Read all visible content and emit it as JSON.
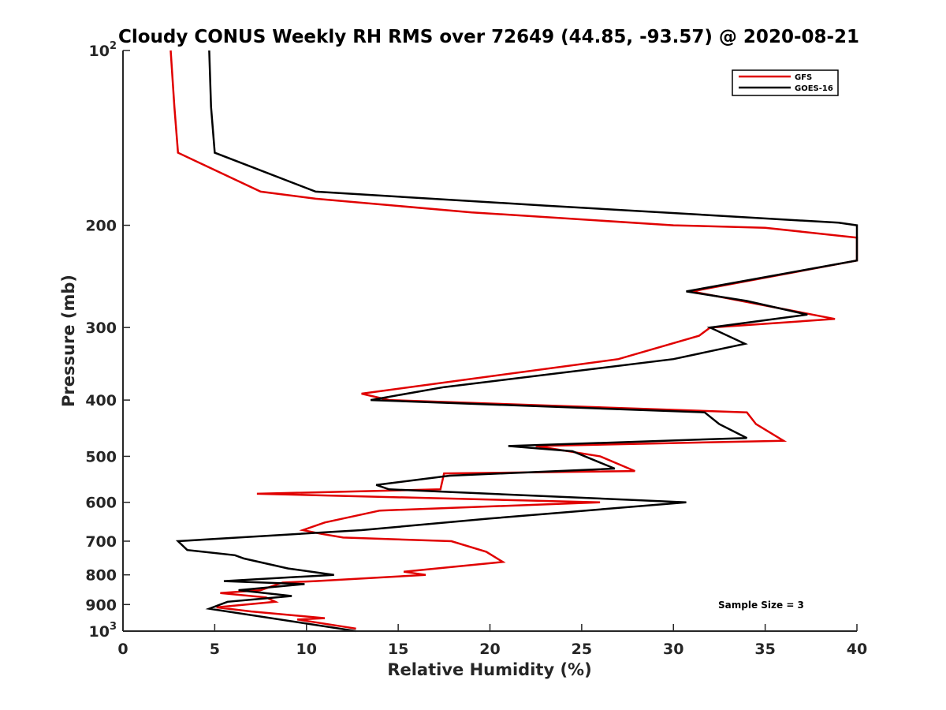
{
  "chart_data": {
    "type": "line",
    "title": "Cloudy CONUS Weekly RH RMS over 72649 (44.85, -93.57) @ 2020-08-21",
    "xlabel": "Relative Humidity (%)",
    "ylabel": "Pressure (mb)",
    "xlim": [
      0,
      40
    ],
    "ylim": [
      100,
      1000
    ],
    "y_scale": "log",
    "y_reversed": true,
    "x_ticks": [
      0,
      5,
      10,
      15,
      20,
      25,
      30,
      35,
      40
    ],
    "x_tick_labels": [
      "0",
      "5",
      "10",
      "15",
      "20",
      "25",
      "30",
      "35",
      "40"
    ],
    "y_ticks": [
      100,
      200,
      300,
      400,
      500,
      600,
      700,
      800,
      900,
      1000
    ],
    "y_tick_labels": [
      {
        "base": "10",
        "exp": "2"
      },
      {
        "base": "200",
        "exp": ""
      },
      {
        "base": "300",
        "exp": ""
      },
      {
        "base": "400",
        "exp": ""
      },
      {
        "base": "500",
        "exp": ""
      },
      {
        "base": "600",
        "exp": ""
      },
      {
        "base": "700",
        "exp": ""
      },
      {
        "base": "800",
        "exp": ""
      },
      {
        "base": "900",
        "exp": ""
      },
      {
        "base": "10",
        "exp": "3"
      }
    ],
    "grid": false,
    "legend_position": "top-right",
    "series": [
      {
        "name": "GFS",
        "color": "#e00000",
        "points": [
          [
            2.6,
            100
          ],
          [
            2.8,
            125
          ],
          [
            3.0,
            150
          ],
          [
            7.5,
            175
          ],
          [
            10.5,
            180
          ],
          [
            19,
            190
          ],
          [
            30,
            200
          ],
          [
            35,
            202
          ],
          [
            40,
            210
          ],
          [
            40,
            230
          ],
          [
            31,
            260
          ],
          [
            38.8,
            290
          ],
          [
            32,
            300
          ],
          [
            31.4,
            310
          ],
          [
            27,
            340
          ],
          [
            13,
            390
          ],
          [
            14.5,
            400
          ],
          [
            34,
            420
          ],
          [
            34.5,
            440
          ],
          [
            36,
            470
          ],
          [
            22.5,
            480
          ],
          [
            26,
            500
          ],
          [
            27.9,
            530
          ],
          [
            17.5,
            535
          ],
          [
            17.3,
            570
          ],
          [
            7.3,
            580
          ],
          [
            26,
            600
          ],
          [
            14,
            620
          ],
          [
            11,
            650
          ],
          [
            9.8,
            670
          ],
          [
            10.8,
            680
          ],
          [
            12,
            690
          ],
          [
            17.9,
            700
          ],
          [
            19.8,
            730
          ],
          [
            20.7,
            760
          ],
          [
            18,
            775
          ],
          [
            15.3,
            790
          ],
          [
            16.5,
            800
          ],
          [
            10.5,
            820
          ],
          [
            8.7,
            825
          ],
          [
            7.5,
            850
          ],
          [
            5.3,
            860
          ],
          [
            7.8,
            875
          ],
          [
            8.3,
            890
          ],
          [
            5.1,
            910
          ],
          [
            7,
            925
          ],
          [
            11,
            950
          ],
          [
            9.5,
            955
          ],
          [
            12.7,
            990
          ]
        ]
      },
      {
        "name": "GOES-16",
        "color": "#000000",
        "points": [
          [
            4.7,
            100
          ],
          [
            4.8,
            125
          ],
          [
            5.0,
            150
          ],
          [
            10.5,
            175
          ],
          [
            23,
            185
          ],
          [
            39,
            198
          ],
          [
            40,
            200
          ],
          [
            40,
            230
          ],
          [
            30.7,
            260
          ],
          [
            34,
            270
          ],
          [
            37.3,
            285
          ],
          [
            32,
            300
          ],
          [
            33.9,
            320
          ],
          [
            30,
            340
          ],
          [
            17.5,
            380
          ],
          [
            13.5,
            400
          ],
          [
            31.7,
            420
          ],
          [
            32.5,
            440
          ],
          [
            34,
            465
          ],
          [
            21,
            480
          ],
          [
            24.5,
            490
          ],
          [
            26.8,
            525
          ],
          [
            17.8,
            540
          ],
          [
            13.8,
            560
          ],
          [
            14.5,
            570
          ],
          [
            30.7,
            600
          ],
          [
            20,
            640
          ],
          [
            13,
            670
          ],
          [
            3,
            700
          ],
          [
            3.5,
            725
          ],
          [
            6.1,
            740
          ],
          [
            6.6,
            750
          ],
          [
            9,
            780
          ],
          [
            11.5,
            800
          ],
          [
            5.5,
            820
          ],
          [
            9.9,
            830
          ],
          [
            6.3,
            850
          ],
          [
            9.2,
            870
          ],
          [
            5.7,
            890
          ],
          [
            4.7,
            915
          ],
          [
            12.7,
            1000
          ]
        ]
      }
    ],
    "annotations": [
      {
        "text": "Sample Size = 3"
      }
    ]
  }
}
